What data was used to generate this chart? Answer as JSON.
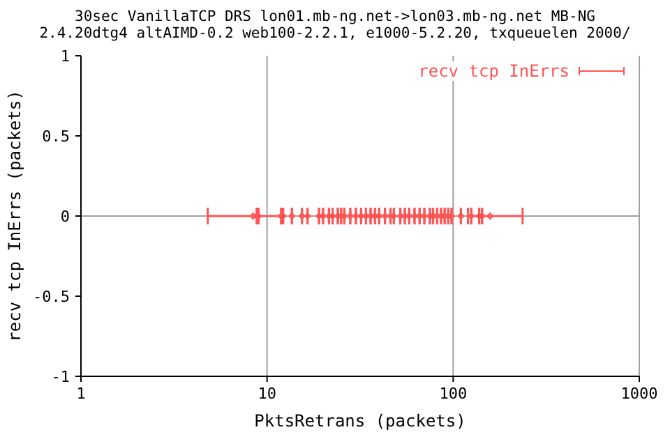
{
  "chart_data": {
    "type": "scatter",
    "title": "30sec VanillaTCP DRS lon01.mb-ng.net->lon03.mb-ng.net MB-NG",
    "subtitle": "2.4.20dtg4 altAIMD-0.2 web100-2.2.1, e1000-5.2.20, txqueuelen 2000/",
    "xlabel": "PktsRetrans (packets)",
    "ylabel": "recv tcp InErrs (packets)",
    "x": [
      8.4,
      8.8,
      9.0,
      11.9,
      12.2,
      13.6,
      15.4,
      16.5,
      19,
      20,
      21.5,
      22.5,
      24,
      25,
      26,
      28,
      30,
      32,
      34,
      36,
      38,
      40,
      43,
      46,
      48,
      52,
      55,
      58,
      62,
      66,
      70,
      75,
      78,
      82,
      86,
      90,
      94,
      98,
      110,
      125,
      138,
      143,
      158
    ],
    "series": [
      {
        "name": "recv tcp InErrs",
        "color": "#ff5555",
        "values": [
          0,
          0,
          0,
          0,
          0,
          0,
          0,
          0,
          0,
          0,
          0,
          0,
          0,
          0,
          0,
          0,
          0,
          0,
          0,
          0,
          0,
          0,
          0,
          0,
          0,
          0,
          0,
          0,
          0,
          0,
          0,
          0,
          0,
          0,
          0,
          0,
          0,
          0,
          0,
          0,
          0,
          0,
          0
        ],
        "xerrors": [
          [
            4.8,
            12
          ],
          null,
          null,
          null,
          null,
          null,
          null,
          null,
          null,
          null,
          null,
          null,
          null,
          null,
          null,
          null,
          null,
          null,
          null,
          null,
          null,
          null,
          null,
          null,
          null,
          null,
          null,
          null,
          null,
          null,
          null,
          null,
          null,
          null,
          null,
          null,
          null,
          null,
          null,
          null,
          null,
          null,
          [
            120,
            236
          ]
        ]
      }
    ],
    "log": "x",
    "xlim": [
      1,
      1000
    ],
    "xticks": [
      1,
      10,
      100,
      1000
    ],
    "ylim": [
      -1,
      1
    ],
    "yticks": [
      -1,
      -0.5,
      0,
      0.5,
      1
    ],
    "grid": "x",
    "ref_lines": [
      {
        "axis": "y",
        "value": 0,
        "color": "#a0a0a0"
      }
    ],
    "legend": "top right",
    "marker": "diamond"
  }
}
